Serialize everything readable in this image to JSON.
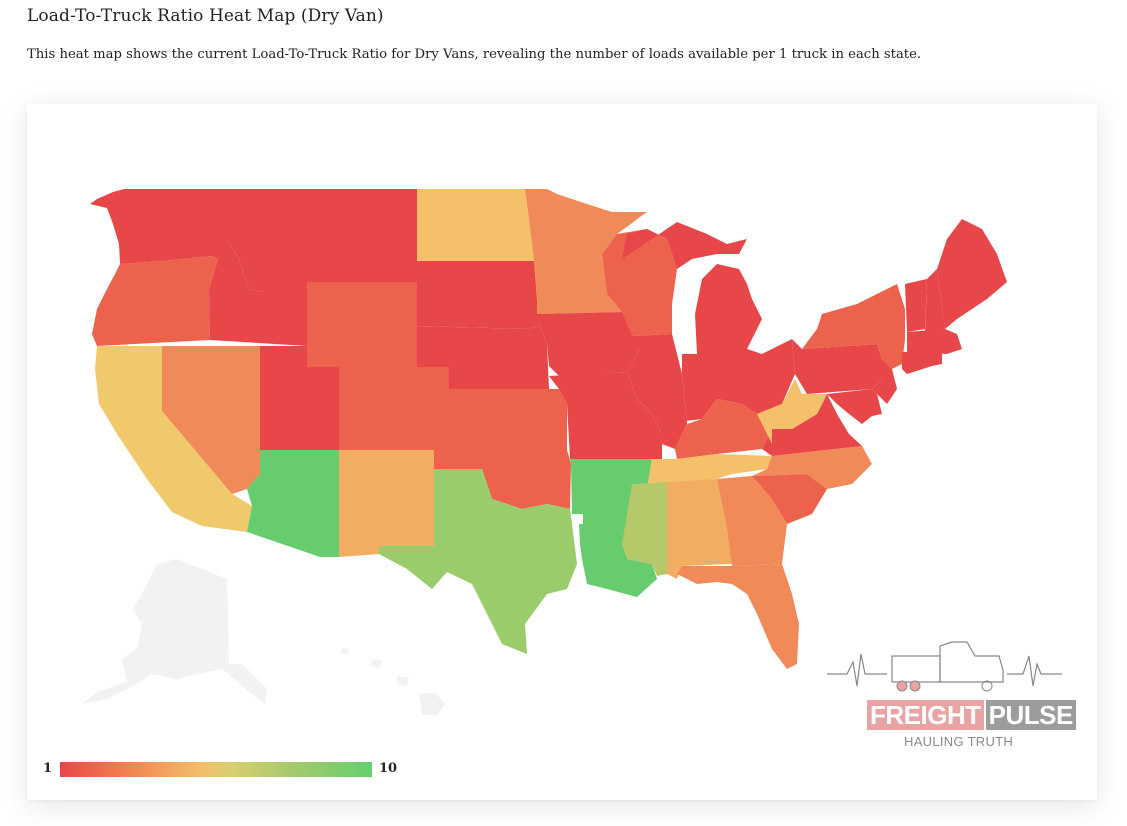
{
  "page": {
    "title": "Load-To-Truck Ratio Heat Map (Dry Van)",
    "description": "This heat map shows the current Load-To-Truck Ratio for Dry Vans, revealing the number of loads available per 1 truck in each state."
  },
  "legend": {
    "min_label": "1",
    "max_label": "10",
    "min_color": "#e8474a",
    "max_color": "#63cf6f"
  },
  "watermark": {
    "brand_part1": "FREIGHT",
    "brand_part2": "PULSE",
    "tagline": "HAULING TRUTH"
  },
  "colors": {
    "red": "#e8474a",
    "red_orange": "#ec624c",
    "orange": "#f08a58",
    "light_orange": "#f3ad63",
    "yellow_orange": "#f4c06a",
    "yellow": "#efc96b",
    "yellow_green": "#b6c96a",
    "light_green": "#9bcc6c",
    "green": "#66cc6e",
    "no_data": "#f2f2f2"
  },
  "states": [
    {
      "code": "WA",
      "level": "red"
    },
    {
      "code": "OR",
      "level": "red_orange"
    },
    {
      "code": "CA",
      "level": "yellow"
    },
    {
      "code": "NV",
      "level": "orange"
    },
    {
      "code": "ID",
      "level": "red"
    },
    {
      "code": "MT",
      "level": "red"
    },
    {
      "code": "WY",
      "level": "red_orange"
    },
    {
      "code": "UT",
      "level": "red"
    },
    {
      "code": "AZ",
      "level": "green"
    },
    {
      "code": "CO",
      "level": "red_orange"
    },
    {
      "code": "NM",
      "level": "light_orange"
    },
    {
      "code": "ND",
      "level": "yellow_orange"
    },
    {
      "code": "SD",
      "level": "red"
    },
    {
      "code": "NE",
      "level": "red"
    },
    {
      "code": "KS",
      "level": "red_orange"
    },
    {
      "code": "OK",
      "level": "red_orange"
    },
    {
      "code": "TX",
      "level": "light_green"
    },
    {
      "code": "MN",
      "level": "orange"
    },
    {
      "code": "IA",
      "level": "red"
    },
    {
      "code": "MO",
      "level": "red"
    },
    {
      "code": "AR",
      "level": "green"
    },
    {
      "code": "LA",
      "level": "green"
    },
    {
      "code": "WI",
      "level": "red_orange"
    },
    {
      "code": "IL",
      "level": "red"
    },
    {
      "code": "MI",
      "level": "red"
    },
    {
      "code": "IN",
      "level": "red"
    },
    {
      "code": "OH",
      "level": "red"
    },
    {
      "code": "KY",
      "level": "red_orange"
    },
    {
      "code": "TN",
      "level": "yellow_orange"
    },
    {
      "code": "MS",
      "level": "yellow_green"
    },
    {
      "code": "AL",
      "level": "light_orange"
    },
    {
      "code": "GA",
      "level": "orange"
    },
    {
      "code": "FL",
      "level": "orange"
    },
    {
      "code": "SC",
      "level": "red_orange"
    },
    {
      "code": "NC",
      "level": "orange"
    },
    {
      "code": "VA",
      "level": "red"
    },
    {
      "code": "WV",
      "level": "yellow_orange"
    },
    {
      "code": "PA",
      "level": "red"
    },
    {
      "code": "NY",
      "level": "red_orange"
    },
    {
      "code": "NJ",
      "level": "red"
    },
    {
      "code": "DE",
      "level": "red"
    },
    {
      "code": "MD",
      "level": "red"
    },
    {
      "code": "VT",
      "level": "red"
    },
    {
      "code": "NH",
      "level": "red"
    },
    {
      "code": "ME",
      "level": "red"
    },
    {
      "code": "MA",
      "level": "red"
    },
    {
      "code": "CT",
      "level": "red"
    },
    {
      "code": "RI",
      "level": "red"
    },
    {
      "code": "AK",
      "level": "no_data"
    },
    {
      "code": "HI",
      "level": "no_data"
    }
  ]
}
